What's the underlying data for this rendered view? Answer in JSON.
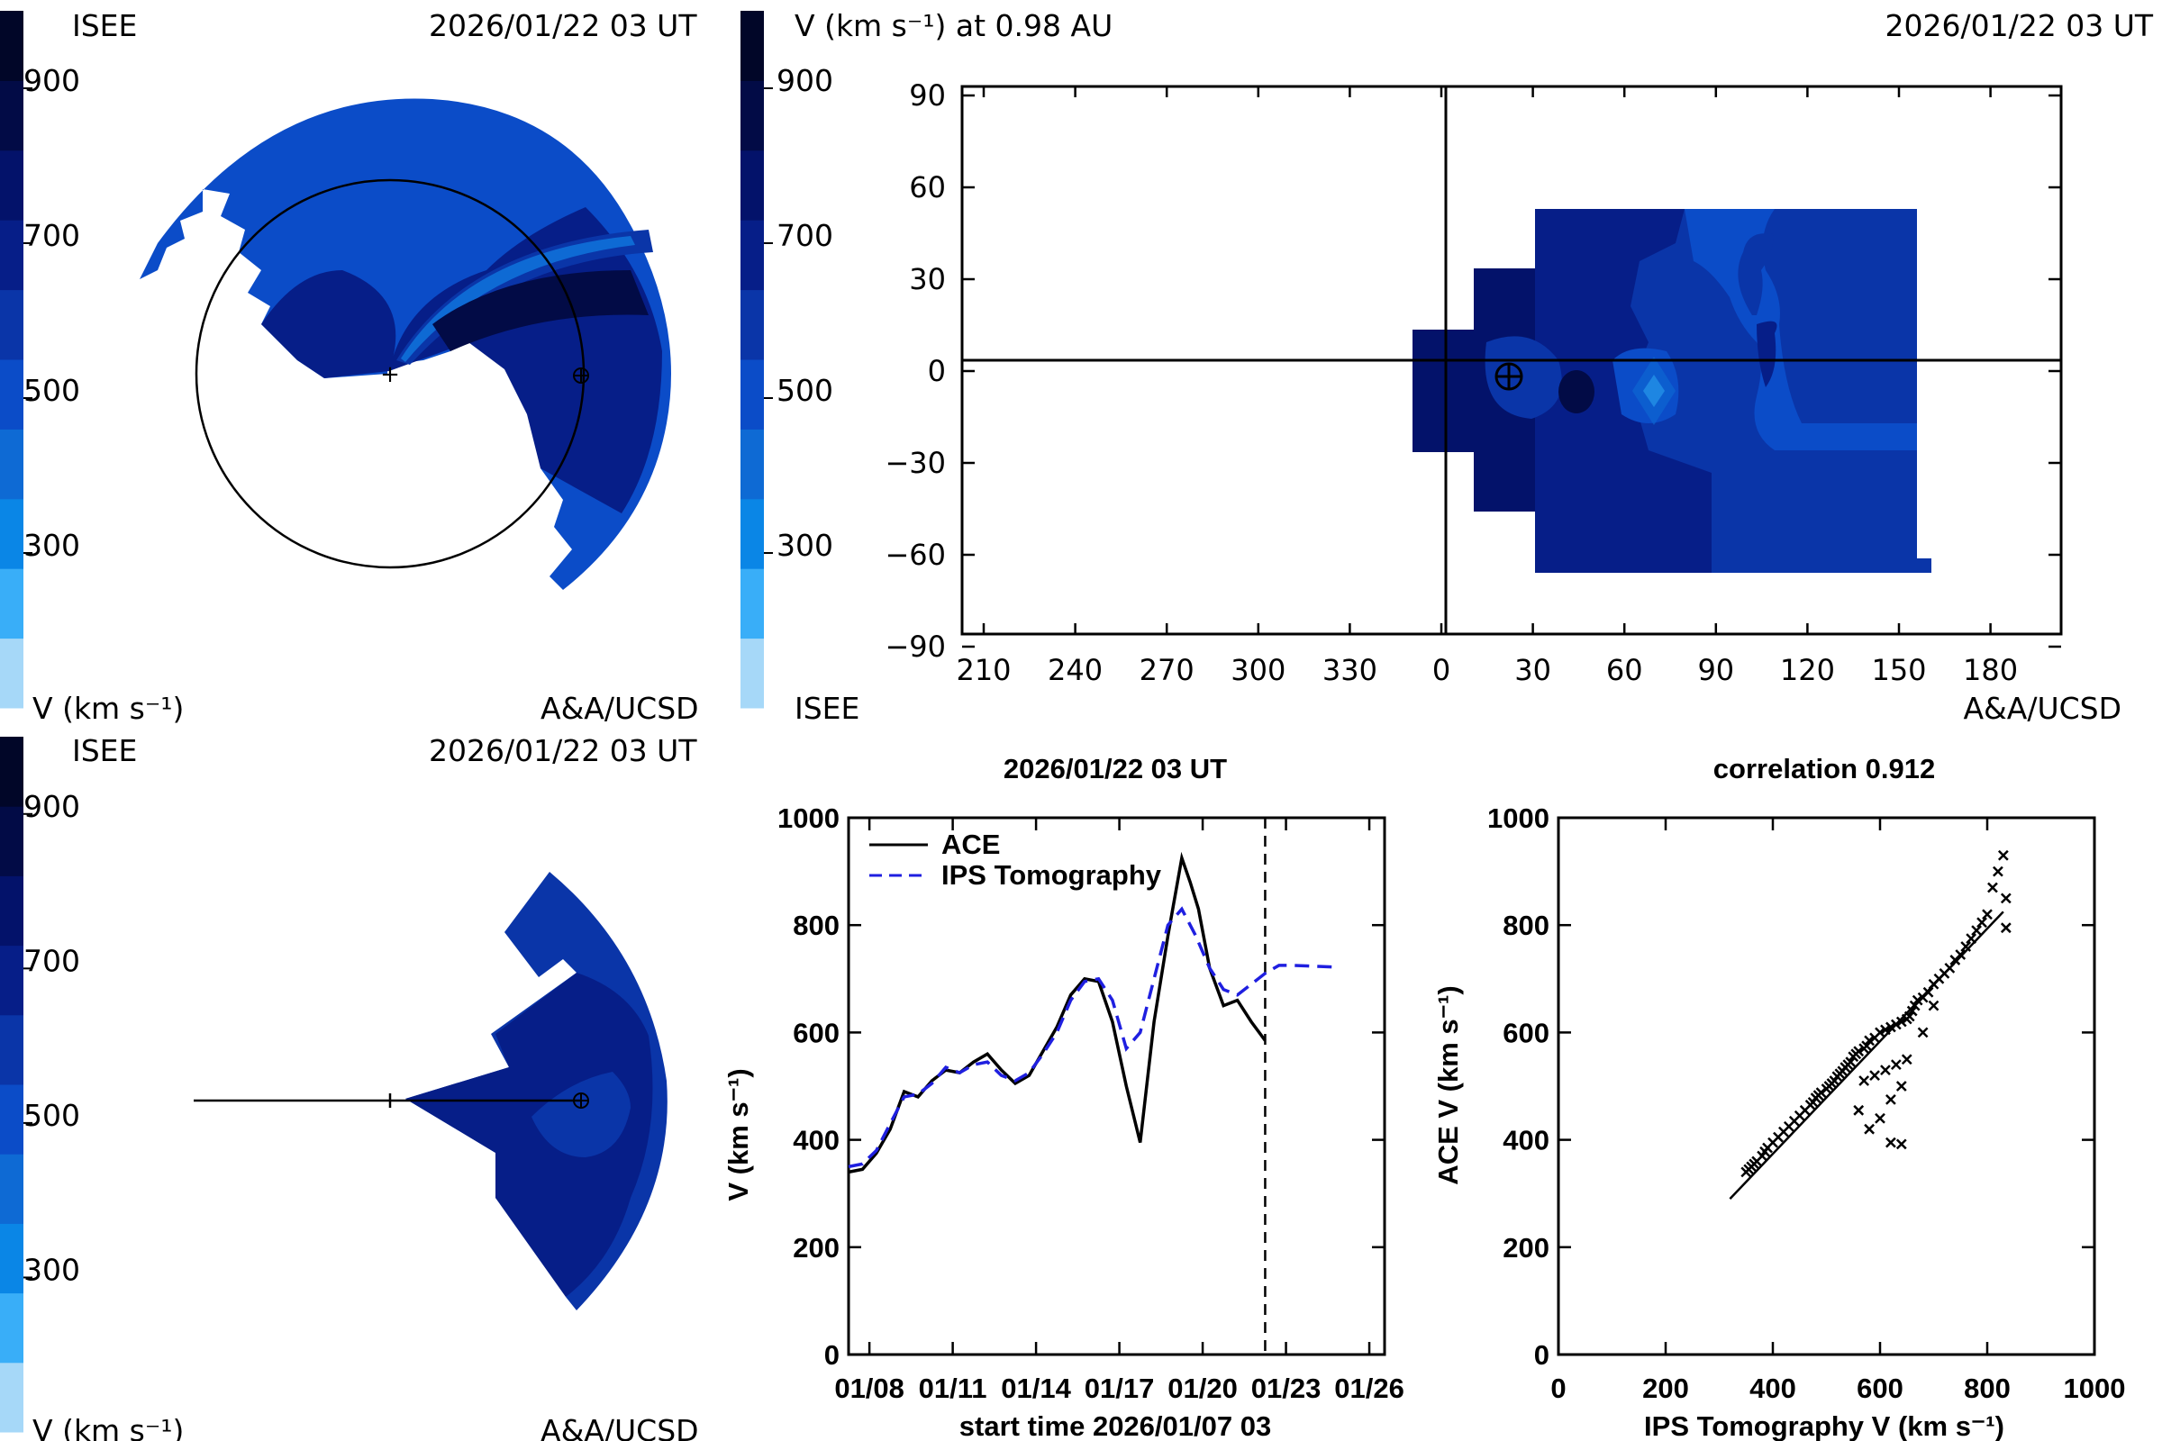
{
  "colors": {
    "scale": [
      "#a6d8f8",
      "#39aef8",
      "#0a86e6",
      "#0e6ad4",
      "#0b4cc8",
      "#0a35a8",
      "#061e88",
      "#03126a",
      "#020b46",
      "#010628"
    ],
    "ace": "#000000",
    "ips": "#1f1fe0"
  },
  "colorbar": {
    "labels": [
      "900",
      "700",
      "500",
      "300"
    ]
  },
  "panel_tl": {
    "org": "ISEE",
    "time": "2026/01/22 03 UT",
    "unit": "V (km s⁻¹)",
    "credit": "A&A/UCSD"
  },
  "panel_tr": {
    "title": "V (km s⁻¹) at 0.98 AU",
    "time": "2026/01/22 03 UT",
    "org": "ISEE",
    "credit": "A&A/UCSD",
    "x_ticks": [
      "210",
      "240",
      "270",
      "300",
      "330",
      "0",
      "30",
      "60",
      "90",
      "120",
      "150",
      "180"
    ],
    "y_ticks": [
      "90",
      "60",
      "30",
      "0",
      "−30",
      "−60",
      "−90"
    ]
  },
  "panel_bl": {
    "org": "ISEE",
    "time": "2026/01/22 03 UT",
    "unit": "V (km s⁻¹)",
    "credit": "A&A/UCSD"
  },
  "chart_data": [
    {
      "type": "line",
      "title": "2026/01/22 03 UT",
      "xlabel": "start time 2026/01/07 03",
      "ylabel": "V (km s⁻¹)",
      "x_ticks": [
        "01/08",
        "01/11",
        "01/14",
        "01/17",
        "01/20",
        "01/23",
        "01/26"
      ],
      "x_tick_days": [
        0.75,
        3.75,
        6.75,
        9.75,
        12.75,
        15.75,
        18.75
      ],
      "xlim": [
        0,
        19.3
      ],
      "ylim": [
        0,
        1000
      ],
      "y_ticks": [
        "0",
        "200",
        "400",
        "600",
        "800",
        "1000"
      ],
      "y_tick_values": [
        0,
        200,
        400,
        600,
        800,
        1000
      ],
      "now_marker_day": 15.0,
      "series": [
        {
          "name": "ACE",
          "x": [
            0,
            0.5,
            1,
            1.5,
            2,
            2.5,
            3,
            3.5,
            4,
            4.5,
            5,
            5.5,
            6,
            6.5,
            7,
            7.5,
            8,
            8.5,
            9,
            9.5,
            10,
            10.5,
            11,
            11.5,
            12,
            12.3,
            12.6,
            13,
            13.5,
            14,
            14.5,
            15
          ],
          "values": [
            340,
            345,
            375,
            420,
            490,
            480,
            510,
            530,
            525,
            545,
            560,
            530,
            505,
            520,
            565,
            610,
            670,
            700,
            695,
            620,
            500,
            395,
            620,
            780,
            925,
            880,
            830,
            720,
            650,
            660,
            620,
            585
          ]
        },
        {
          "name": "IPS Tomography",
          "x": [
            0,
            0.5,
            1,
            1.5,
            2,
            2.5,
            3,
            3.5,
            4,
            4.5,
            5,
            5.5,
            6,
            6.5,
            7,
            7.5,
            8,
            8.5,
            9,
            9.5,
            10,
            10.5,
            11,
            11.5,
            12,
            12.5,
            13,
            13.5,
            14,
            14.5,
            15,
            15.5,
            16,
            16.5,
            17,
            17.5
          ],
          "values": [
            350,
            355,
            380,
            430,
            480,
            485,
            505,
            535,
            525,
            540,
            545,
            520,
            510,
            525,
            560,
            600,
            660,
            695,
            700,
            660,
            570,
            600,
            700,
            800,
            830,
            780,
            720,
            680,
            670,
            690,
            710,
            725,
            725,
            724,
            723,
            722
          ]
        }
      ]
    },
    {
      "type": "scatter",
      "title": "correlation 0.912",
      "xlabel": "IPS Tomography V (km s⁻¹)",
      "ylabel": "ACE V (km s⁻¹)",
      "xlim": [
        0,
        1000
      ],
      "ylim": [
        0,
        1000
      ],
      "x_ticks": [
        "0",
        "200",
        "400",
        "600",
        "800",
        "1000"
      ],
      "y_ticks": [
        "0",
        "200",
        "400",
        "600",
        "800",
        "1000"
      ],
      "tick_values": [
        0,
        200,
        400,
        600,
        800,
        1000
      ],
      "points": [
        [
          350,
          340
        ],
        [
          355,
          345
        ],
        [
          360,
          350
        ],
        [
          365,
          355
        ],
        [
          370,
          360
        ],
        [
          380,
          370
        ],
        [
          385,
          378
        ],
        [
          390,
          385
        ],
        [
          400,
          395
        ],
        [
          410,
          405
        ],
        [
          420,
          415
        ],
        [
          430,
          425
        ],
        [
          440,
          435
        ],
        [
          450,
          445
        ],
        [
          460,
          455
        ],
        [
          470,
          465
        ],
        [
          475,
          470
        ],
        [
          480,
          478
        ],
        [
          485,
          483
        ],
        [
          490,
          488
        ],
        [
          500,
          495
        ],
        [
          505,
          500
        ],
        [
          510,
          505
        ],
        [
          515,
          510
        ],
        [
          520,
          518
        ],
        [
          525,
          523
        ],
        [
          530,
          528
        ],
        [
          535,
          535
        ],
        [
          540,
          540
        ],
        [
          545,
          545
        ],
        [
          550,
          555
        ],
        [
          555,
          560
        ],
        [
          560,
          565
        ],
        [
          570,
          570
        ],
        [
          575,
          575
        ],
        [
          580,
          585
        ],
        [
          590,
          590
        ],
        [
          600,
          600
        ],
        [
          610,
          605
        ],
        [
          620,
          610
        ],
        [
          630,
          615
        ],
        [
          640,
          620
        ],
        [
          650,
          625
        ],
        [
          655,
          630
        ],
        [
          660,
          640
        ],
        [
          665,
          650
        ],
        [
          670,
          660
        ],
        [
          680,
          665
        ],
        [
          690,
          675
        ],
        [
          700,
          690
        ],
        [
          710,
          700
        ],
        [
          720,
          710
        ],
        [
          730,
          720
        ],
        [
          740,
          735
        ],
        [
          750,
          745
        ],
        [
          760,
          760
        ],
        [
          770,
          775
        ],
        [
          780,
          790
        ],
        [
          790,
          805
        ],
        [
          800,
          820
        ],
        [
          810,
          870
        ],
        [
          820,
          900
        ],
        [
          830,
          930
        ],
        [
          835,
          850
        ],
        [
          835,
          795
        ],
        [
          560,
          455
        ],
        [
          580,
          420
        ],
        [
          600,
          440
        ],
        [
          620,
          475
        ],
        [
          640,
          500
        ],
        [
          650,
          550
        ],
        [
          680,
          600
        ],
        [
          700,
          650
        ],
        [
          620,
          395
        ],
        [
          640,
          392
        ],
        [
          570,
          510
        ],
        [
          590,
          520
        ],
        [
          610,
          530
        ],
        [
          630,
          540
        ]
      ],
      "fit_line": [
        [
          320,
          290
        ],
        [
          830,
          825
        ]
      ]
    }
  ]
}
